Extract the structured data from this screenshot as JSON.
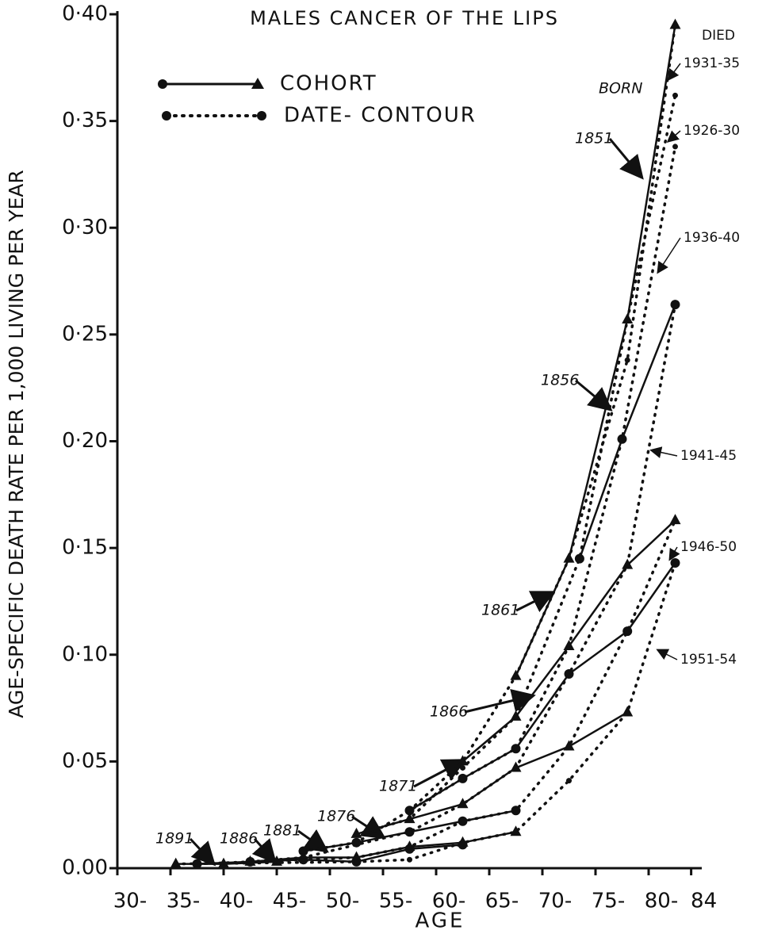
{
  "chart_data": {
    "type": "line",
    "title": "MALES   CANCER OF THE LIPS",
    "x_label": "AGE",
    "y_label": "AGE-SPECIFIC DEATH RATE PER 1,000 LIVING PER YEAR",
    "xlim": [
      30,
      85
    ],
    "ylim": [
      0,
      0.4
    ],
    "xticks": [
      {
        "value": 30,
        "label": "30-"
      },
      {
        "value": 35,
        "label": "35-"
      },
      {
        "value": 40,
        "label": "40-"
      },
      {
        "value": 45,
        "label": "45-"
      },
      {
        "value": 50,
        "label": "50-"
      },
      {
        "value": 55,
        "label": "55-"
      },
      {
        "value": 60,
        "label": "60-"
      },
      {
        "value": 65,
        "label": "65-"
      },
      {
        "value": 70,
        "label": "70-"
      },
      {
        "value": 75,
        "label": "75-"
      },
      {
        "value": 80,
        "label": "80-"
      },
      84
    ],
    "yticks": [
      {
        "value": 0,
        "label": "0.00"
      },
      {
        "value": 0.05,
        "label": "0·05"
      },
      {
        "value": 0.1,
        "label": "0·10"
      },
      {
        "value": 0.15,
        "label": "0·15"
      },
      {
        "value": 0.2,
        "label": "0·20"
      },
      {
        "value": 0.25,
        "label": "0·25"
      },
      {
        "value": 0.3,
        "label": "0·30"
      },
      {
        "value": 0.35,
        "label": "0·35"
      },
      {
        "value": 0.4,
        "label": "0·40"
      }
    ],
    "legend": [
      {
        "name": "COHORT",
        "line": "solid"
      },
      {
        "name": "DATE- CONTOUR",
        "line": "dotted"
      }
    ],
    "annotations": [
      "BORN",
      "DIED"
    ],
    "color": "#111",
    "series": [
      {
        "name": "1851",
        "line": "solid",
        "marker": "triangle",
        "x": [
          67.5,
          72.5,
          78,
          82.5
        ],
        "values": [
          0.09,
          0.145,
          0.257,
          0.395
        ]
      },
      {
        "name": "1856",
        "line": "solid",
        "marker": "circle",
        "x": [
          73.5,
          77.5,
          82.5
        ],
        "values": [
          0.145,
          0.201,
          0.264
        ]
      },
      {
        "name": "1861",
        "line": "solid",
        "marker": "triangle",
        "x": [
          62.5,
          67.5,
          72.5,
          78,
          82.5
        ],
        "values": [
          0.05,
          0.071,
          0.104,
          0.142,
          0.163
        ]
      },
      {
        "name": "1866",
        "line": "solid",
        "marker": "circle",
        "x": [
          57.5,
          62.5,
          67.5,
          72.5,
          78,
          82.5
        ],
        "values": [
          0.027,
          0.042,
          0.056,
          0.091,
          0.111,
          0.143
        ]
      },
      {
        "name": "1871",
        "line": "solid",
        "marker": "triangle",
        "x": [
          52.5,
          57.5,
          62.5,
          67.5,
          72.5,
          78
        ],
        "values": [
          0.016,
          0.023,
          0.03,
          0.047,
          0.057,
          0.073
        ]
      },
      {
        "name": "1876",
        "line": "solid",
        "marker": "circle",
        "x": [
          47.5,
          52.5,
          57.5,
          62.5,
          67.5
        ],
        "values": [
          0.008,
          0.012,
          0.017,
          0.022,
          0.027
        ]
      },
      {
        "name": "1881",
        "line": "solid",
        "marker": "triangle",
        "x": [
          42.5,
          47.5,
          52.5,
          57.5,
          62.5,
          67.5
        ],
        "values": [
          0.003,
          0.005,
          0.005,
          0.01,
          0.012,
          0.017
        ]
      },
      {
        "name": "1886",
        "line": "solid",
        "marker": "circle",
        "x": [
          37.5,
          42.5,
          47.5,
          52.5,
          57.5,
          62.5
        ],
        "values": [
          0.002,
          0.003,
          0.004,
          0.003,
          0.009,
          0.011
        ]
      },
      {
        "name": "1891",
        "line": "solid",
        "marker": "triangle",
        "x": [
          35.5,
          40,
          45
        ],
        "values": [
          0.002,
          0.002,
          0.003
        ]
      },
      {
        "name": "1931-35",
        "line": "dotted",
        "marker": "none",
        "x": [
          57.5,
          62.5,
          67.5,
          72.5,
          78,
          82.5
        ],
        "values": [
          0.027,
          0.05,
          0.09,
          0.145,
          0.238,
          0.395
        ]
      },
      {
        "name": "1926-30",
        "line": "dotted",
        "marker": "none",
        "x": [
          52.5,
          57.5,
          62.5,
          67.5,
          73.5,
          78,
          82.5
        ],
        "values": [
          0.016,
          0.023,
          0.047,
          0.071,
          0.145,
          0.257,
          0.362
        ]
      },
      {
        "name": "1936-40",
        "line": "dotted",
        "marker": "none",
        "x": [
          47.5,
          52.5,
          57.5,
          62.5,
          67.5,
          72.5,
          77.5,
          82.5
        ],
        "values": [
          0.008,
          0.012,
          0.027,
          0.042,
          0.056,
          0.104,
          0.201,
          0.338
        ]
      },
      {
        "name": "1941-45",
        "line": "dotted",
        "marker": "none",
        "x": [
          42.5,
          47.5,
          57.5,
          62.5,
          67.5,
          72.5,
          78,
          82.5
        ],
        "values": [
          0.003,
          0.005,
          0.017,
          0.03,
          0.047,
          0.091,
          0.142,
          0.264
        ]
      },
      {
        "name": "1946-50",
        "line": "dotted",
        "marker": "none",
        "x": [
          37.5,
          52.5,
          57.5,
          62.5,
          67.5,
          72.5,
          78,
          82.5
        ],
        "values": [
          0.002,
          0.005,
          0.01,
          0.022,
          0.027,
          0.057,
          0.111,
          0.163
        ]
      },
      {
        "name": "1951-54",
        "line": "dotted",
        "marker": "none",
        "x": [
          35.5,
          52.5,
          57.5,
          62.5,
          67.5,
          72.5,
          78,
          82.5
        ],
        "values": [
          0.002,
          0.003,
          0.004,
          0.012,
          0.017,
          0.041,
          0.073,
          0.143
        ]
      }
    ]
  }
}
